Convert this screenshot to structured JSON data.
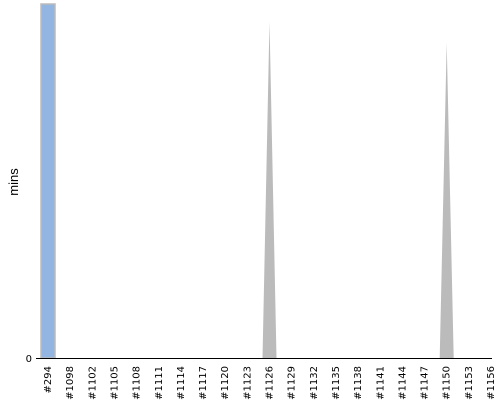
{
  "chart_data": {
    "type": "area",
    "ylabel": "mins",
    "xlabel": "",
    "title": "",
    "categories": [
      "#294",
      "#1098",
      "#1102",
      "#1105",
      "#1108",
      "#1111",
      "#1114",
      "#1117",
      "#1120",
      "#1123",
      "#1126",
      "#1129",
      "#1132",
      "#1135",
      "#1138",
      "#1141",
      "#1144",
      "#1147",
      "#1150",
      "#1153",
      "#1156"
    ],
    "x_tick_labels": [
      "#294",
      "#1098",
      "#1102",
      "#1105",
      "#1108",
      "#1111",
      "#1114",
      "#1117",
      "#1120",
      "#1123",
      "#1126",
      "#1129",
      "#1132",
      "#1135",
      "#1138",
      "#1141",
      "#1144",
      "#1147",
      "#1150",
      "#1153",
      "#1156"
    ],
    "y_tick_labels": [
      "0"
    ],
    "series": [
      {
        "values": [
          1.0,
          0,
          0,
          0,
          0,
          0,
          0,
          0,
          0,
          0,
          0.95,
          0,
          0,
          0,
          0,
          0,
          0,
          0,
          0.89,
          0,
          0
        ],
        "color": "#bbbbbb",
        "highlight_index": 0,
        "highlight_color": "#92b6e1"
      }
    ],
    "ylim": [
      0,
      1
    ],
    "grid": false
  }
}
